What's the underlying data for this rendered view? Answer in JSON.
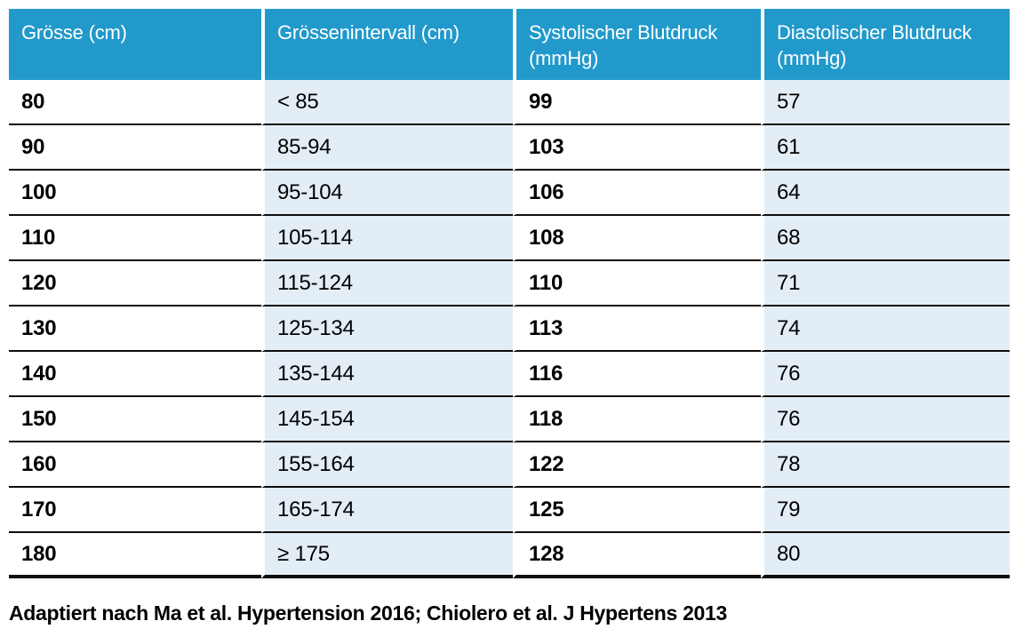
{
  "colors": {
    "header_bg": "#2299cb",
    "stripe_bg": "#e3edf6",
    "row_line": "#0d0d0d",
    "header_text": "#ffffff",
    "body_text": "#000000"
  },
  "table": {
    "headers": [
      {
        "label": "Grösse (cm)"
      },
      {
        "label": "Grössenintervall (cm)"
      },
      {
        "label": "Systolischer Blutdruck\n(mmHg)"
      },
      {
        "label": "Diastolischer Blutdruck\n(mmHg)"
      }
    ],
    "rows": [
      {
        "groesse": "80",
        "intervall": "< 85",
        "sys": "99",
        "dia": "57"
      },
      {
        "groesse": "90",
        "intervall": "85-94",
        "sys": "103",
        "dia": "61"
      },
      {
        "groesse": "100",
        "intervall": "95-104",
        "sys": "106",
        "dia": "64"
      },
      {
        "groesse": "110",
        "intervall": "105-114",
        "sys": "108",
        "dia": "68"
      },
      {
        "groesse": "120",
        "intervall": "115-124",
        "sys": "110",
        "dia": "71"
      },
      {
        "groesse": "130",
        "intervall": "125-134",
        "sys": "113",
        "dia": "74"
      },
      {
        "groesse": "140",
        "intervall": "135-144",
        "sys": "116",
        "dia": "76"
      },
      {
        "groesse": "150",
        "intervall": "145-154",
        "sys": "118",
        "dia": "76"
      },
      {
        "groesse": "160",
        "intervall": "155-164",
        "sys": "122",
        "dia": "78"
      },
      {
        "groesse": "170",
        "intervall": "165-174",
        "sys": "125",
        "dia": "79"
      },
      {
        "groesse": "180",
        "intervall": "≥ 175",
        "sys": "128",
        "dia": "80"
      }
    ]
  },
  "caption": "Adaptiert nach Ma et al. Hypertension 2016; Chiolero et al. J Hypertens 2013",
  "chart_data": {
    "type": "table",
    "columns": [
      "Grösse (cm)",
      "Grössenintervall (cm)",
      "Systolischer Blutdruck (mmHg)",
      "Diastolischer Blutdruck (mmHg)"
    ],
    "rows": [
      [
        "80",
        "< 85",
        99,
        57
      ],
      [
        "90",
        "85-94",
        103,
        61
      ],
      [
        "100",
        "95-104",
        106,
        64
      ],
      [
        "110",
        "105-114",
        108,
        68
      ],
      [
        "120",
        "115-124",
        110,
        71
      ],
      [
        "130",
        "125-134",
        113,
        74
      ],
      [
        "140",
        "135-144",
        116,
        76
      ],
      [
        "150",
        "145-154",
        118,
        76
      ],
      [
        "160",
        "155-164",
        122,
        78
      ],
      [
        "170",
        "165-174",
        125,
        79
      ],
      [
        "180",
        "≥ 175",
        128,
        80
      ]
    ],
    "caption": "Adaptiert nach Ma et al. Hypertension 2016; Chiolero et al. J Hypertens 2013"
  }
}
